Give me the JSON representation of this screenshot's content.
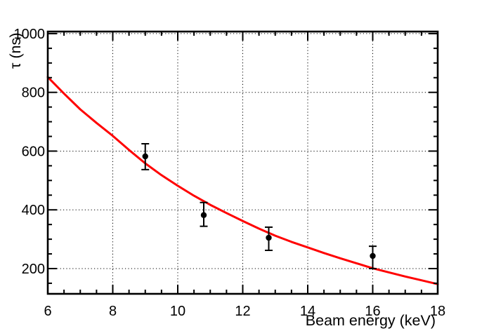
{
  "chart_data": {
    "type": "scatter",
    "title": "",
    "xlabel": "Beam energy (keV)",
    "ylabel": "τ (ns)",
    "xlim": [
      6,
      18
    ],
    "ylim": [
      114,
      1007
    ],
    "x_major_ticks": [
      6,
      8,
      10,
      12,
      14,
      16,
      18
    ],
    "x_minor_step": 0.5,
    "y_major_ticks": [
      200,
      400,
      600,
      800,
      1000
    ],
    "y_minor_step": 50,
    "grid": "dotted lines at major ticks, both axes",
    "legend": null,
    "frame_color": "#000000",
    "background_color": "#ffffff",
    "series": [
      {
        "name": "measured-lifetimes",
        "type": "scatter-errorbars",
        "marker": "filled-circle",
        "color": "#000000",
        "points": [
          {
            "x": 9.0,
            "y": 582,
            "err_up": 43,
            "err_down": 45
          },
          {
            "x": 10.8,
            "y": 382,
            "err_up": 43,
            "err_down": 38
          },
          {
            "x": 12.8,
            "y": 305,
            "err_up": 36,
            "err_down": 43
          },
          {
            "x": 16.0,
            "y": 243,
            "err_up": 33,
            "err_down": 43
          }
        ]
      },
      {
        "name": "fit-curve",
        "type": "line",
        "color": "#ff0000",
        "x": [
          6,
          6.5,
          7,
          7.5,
          8,
          8.5,
          9,
          9.5,
          10,
          10.5,
          11,
          11.5,
          12,
          12.5,
          13,
          13.5,
          14,
          14.5,
          15,
          15.5,
          16,
          16.5,
          17,
          17.5,
          18
        ],
        "y": [
          852,
          796,
          742,
          696,
          652,
          604,
          558,
          518,
          482,
          448,
          417,
          389,
          362,
          336,
          312,
          291,
          272,
          253,
          235,
          218,
          201,
          187,
          173,
          160,
          147
        ]
      }
    ]
  }
}
